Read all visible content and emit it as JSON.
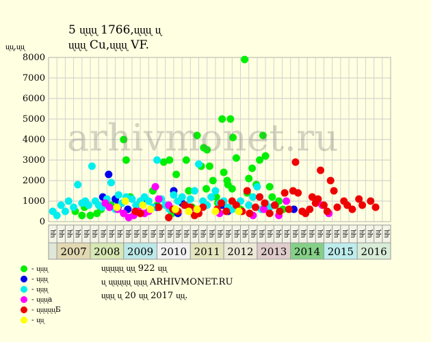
{
  "header": {
    "title_line1": "5 ᶙᶙᶙ 1766,ᶙᶙᶙ ᶙ",
    "title_line2": "ᶙᶙᶙ Cu,ᶙᶙᶙ VF.",
    "ylabel": "ᶙᶙ,ᶙᶙ"
  },
  "watermark": "arhivmonet.ru",
  "notes": {
    "line1": "ᶙᶙᶙᶙᶙ ᶙᶙ 922 ᶙᶙ",
    "line2": "ᶙ ᶙᶙᶙᶙᶙ ᶙᶙᶙ ARHIVMONET.RU",
    "line3": "ᶙᶙᶙ ᶙ 20 ᶙᶙ 2017 ᶙᶙ."
  },
  "legend": [
    {
      "label": "- ᶙᶙᶙ",
      "color": "#00ee00"
    },
    {
      "label": "- ᶙᶙᶙ",
      "color": "#0000ee"
    },
    {
      "label": "- ᶙᶙᶙ",
      "color": "#00eeee"
    },
    {
      "label": "- ᶙᶙᶙa",
      "color": "#ff00ff"
    },
    {
      "label": "- ᶙᶙᶙᶙᶙБ",
      "color": "#ee0000"
    },
    {
      "label": "- ᶙᶙ",
      "color": "#ffff00"
    }
  ],
  "chart_data": {
    "type": "scatter",
    "ylim": [
      0,
      8000
    ],
    "yticks": [
      0,
      1000,
      2000,
      3000,
      4000,
      5000,
      6000,
      7000,
      8000
    ],
    "grid": true,
    "quarter_labels": [
      "ᶙᶙ",
      "ᶙᶙ",
      "ᶙᶙ",
      "ᶙᶙ",
      "ᶙᶙ",
      "ᶙᶙ",
      "ᶙᶙ",
      "ᶙᶙ",
      "ᶙᶙ",
      "ᶙᶙ",
      "ᶙᶙ",
      "ᶙᶙ",
      "ᶙᶙ",
      "ᶙᶙ",
      "ᶙᶙ",
      "ᶙᶙ",
      "ᶙᶙ",
      "ᶙᶙ",
      "ᶙᶙ",
      "ᶙᶙ",
      "ᶙᶙ",
      "ᶙᶙ",
      "ᶙᶙ",
      "ᶙᶙ",
      "ᶙᶙ",
      "ᶙᶙ",
      "ᶙᶙ",
      "ᶙᶙ",
      "ᶙᶙ",
      "ᶙᶙ",
      "ᶙᶙ",
      "ᶙᶙ",
      "ᶙᶙ",
      "ᶙᶙ",
      "ᶙᶙ",
      "ᶙᶙ",
      "ᶙᶙ",
      "ᶙᶙ",
      "ᶙᶙ",
      "ᶙᶙ",
      "ᶙᶙ"
    ],
    "years": [
      {
        "label": "2007",
        "color": "#e2d8b2"
      },
      {
        "label": "2008",
        "color": "#d7e8b4"
      },
      {
        "label": "2009",
        "color": "#bde8e8"
      },
      {
        "label": "2010",
        "color": "#f2f2f2"
      },
      {
        "label": "2011",
        "color": "#e4e4bd"
      },
      {
        "label": "2012",
        "color": "#ede9d7"
      },
      {
        "label": "2013",
        "color": "#e0cccc"
      },
      {
        "label": "2014",
        "color": "#85d088"
      },
      {
        "label": "2015",
        "color": "#bdecec"
      },
      {
        "label": "2016",
        "color": "#d8ecd8"
      }
    ],
    "series": [
      {
        "color": "#00ee00",
        "points": [
          [
            3.2,
            500
          ],
          [
            4.0,
            300
          ],
          [
            4.3,
            700
          ],
          [
            5.0,
            300
          ],
          [
            5.8,
            400
          ],
          [
            6.3,
            600
          ],
          [
            7.5,
            800
          ],
          [
            9.0,
            4000
          ],
          [
            9.3,
            3000
          ],
          [
            9.8,
            1200
          ],
          [
            11.2,
            900
          ],
          [
            12.5,
            1500
          ],
          [
            13.0,
            800
          ],
          [
            13.8,
            2900
          ],
          [
            14.5,
            3000
          ],
          [
            14.8,
            400
          ],
          [
            15.3,
            2300
          ],
          [
            15.8,
            1000
          ],
          [
            16.5,
            3000
          ],
          [
            16.8,
            1500
          ],
          [
            17.2,
            700
          ],
          [
            17.8,
            4200
          ],
          [
            18.3,
            2700
          ],
          [
            18.6,
            3600
          ],
          [
            19.0,
            3500
          ],
          [
            19.3,
            2700
          ],
          [
            19.7,
            2000
          ],
          [
            20.3,
            900
          ],
          [
            20.8,
            5000
          ],
          [
            21.0,
            2400
          ],
          [
            21.5,
            1800
          ],
          [
            21.8,
            5000
          ],
          [
            22.1,
            4100
          ],
          [
            22.5,
            3100
          ],
          [
            23.0,
            600
          ],
          [
            23.5,
            7900
          ],
          [
            24.0,
            2100
          ],
          [
            24.4,
            2600
          ],
          [
            24.9,
            1800
          ],
          [
            25.3,
            3000
          ],
          [
            25.7,
            4200
          ],
          [
            26.0,
            3200
          ],
          [
            26.5,
            1700
          ],
          [
            26.8,
            1200
          ],
          [
            27.2,
            800
          ],
          [
            27.6,
            1000
          ],
          [
            28.1,
            600
          ],
          [
            22.0,
            1600
          ],
          [
            20.1,
            1200
          ],
          [
            18.9,
            1600
          ],
          [
            21.4,
            2000
          ],
          [
            23.8,
            1400
          ]
        ]
      },
      {
        "color": "#0000ee",
        "points": [
          [
            6.5,
            1200
          ],
          [
            7.2,
            2300
          ],
          [
            8.0,
            1100
          ],
          [
            8.4,
            800
          ],
          [
            9.5,
            600
          ],
          [
            11.5,
            1000
          ],
          [
            13.0,
            700
          ],
          [
            15.0,
            1500
          ],
          [
            15.5,
            400
          ],
          [
            16.0,
            900
          ],
          [
            20.8,
            800
          ],
          [
            21.5,
            500
          ],
          [
            29.4,
            600
          ]
        ]
      },
      {
        "color": "#00eeee",
        "points": [
          [
            0.5,
            500
          ],
          [
            1.0,
            300
          ],
          [
            1.5,
            800
          ],
          [
            2.0,
            500
          ],
          [
            2.4,
            1000
          ],
          [
            3.0,
            700
          ],
          [
            3.5,
            1800
          ],
          [
            4.0,
            900
          ],
          [
            4.4,
            1000
          ],
          [
            4.8,
            800
          ],
          [
            5.2,
            2700
          ],
          [
            5.6,
            1000
          ],
          [
            6.0,
            800
          ],
          [
            6.4,
            700
          ],
          [
            7.0,
            1100
          ],
          [
            7.5,
            1900
          ],
          [
            8.0,
            600
          ],
          [
            8.4,
            1300
          ],
          [
            8.8,
            900
          ],
          [
            9.3,
            1200
          ],
          [
            10.0,
            1100
          ],
          [
            10.5,
            800
          ],
          [
            11.0,
            1000
          ],
          [
            11.5,
            1200
          ],
          [
            12.0,
            1000
          ],
          [
            12.5,
            700
          ],
          [
            13.0,
            3000
          ],
          [
            13.5,
            1100
          ],
          [
            14.0,
            800
          ],
          [
            14.5,
            600
          ],
          [
            15.0,
            1300
          ],
          [
            15.5,
            1000
          ],
          [
            16.0,
            1200
          ],
          [
            16.5,
            800
          ],
          [
            17.0,
            1100
          ],
          [
            17.5,
            1500
          ],
          [
            18.0,
            2800
          ],
          [
            18.5,
            1000
          ],
          [
            19.0,
            800
          ],
          [
            19.5,
            1200
          ],
          [
            20.0,
            1500
          ],
          [
            20.5,
            900
          ],
          [
            21.0,
            1000
          ],
          [
            21.5,
            700
          ],
          [
            22.0,
            600
          ],
          [
            23.0,
            1000
          ],
          [
            24.0,
            800
          ],
          [
            24.5,
            1200
          ],
          [
            25.0,
            1700
          ],
          [
            25.5,
            600
          ],
          [
            26.0,
            900
          ],
          [
            26.5,
            700
          ]
        ]
      },
      {
        "color": "#ff00ff",
        "points": [
          [
            6.8,
            900
          ],
          [
            7.3,
            700
          ],
          [
            8.3,
            600
          ],
          [
            9.0,
            400
          ],
          [
            9.6,
            200
          ],
          [
            10.2,
            300
          ],
          [
            10.8,
            500
          ],
          [
            11.5,
            400
          ],
          [
            12.0,
            500
          ],
          [
            12.8,
            1700
          ],
          [
            13.2,
            1100
          ],
          [
            14.4,
            800
          ],
          [
            17.0,
            600
          ],
          [
            20.5,
            400
          ],
          [
            24.5,
            300
          ],
          [
            25.8,
            600
          ],
          [
            27.6,
            300
          ],
          [
            28.5,
            1000
          ],
          [
            32.8,
            800
          ],
          [
            33.6,
            400
          ]
        ]
      },
      {
        "color": "#ee0000",
        "points": [
          [
            10.4,
            500
          ],
          [
            11.0,
            400
          ],
          [
            13.2,
            700
          ],
          [
            14.4,
            200
          ],
          [
            14.9,
            600
          ],
          [
            15.5,
            500
          ],
          [
            16.3,
            800
          ],
          [
            17.0,
            700
          ],
          [
            17.5,
            300
          ],
          [
            18.0,
            400
          ],
          [
            18.5,
            700
          ],
          [
            20.2,
            600
          ],
          [
            20.7,
            900
          ],
          [
            21.3,
            500
          ],
          [
            22.0,
            1000
          ],
          [
            22.5,
            800
          ],
          [
            23.2,
            500
          ],
          [
            23.8,
            1500
          ],
          [
            24.1,
            400
          ],
          [
            24.8,
            700
          ],
          [
            25.3,
            1200
          ],
          [
            25.9,
            900
          ],
          [
            26.5,
            400
          ],
          [
            27.1,
            800
          ],
          [
            27.7,
            500
          ],
          [
            28.3,
            1400
          ],
          [
            28.8,
            600
          ],
          [
            29.3,
            1500
          ],
          [
            29.6,
            2900
          ],
          [
            29.9,
            1400
          ],
          [
            30.4,
            500
          ],
          [
            30.8,
            400
          ],
          [
            31.3,
            600
          ],
          [
            31.6,
            1200
          ],
          [
            32.0,
            900
          ],
          [
            32.3,
            1100
          ],
          [
            32.6,
            2500
          ],
          [
            33.0,
            800
          ],
          [
            33.4,
            500
          ],
          [
            33.8,
            2000
          ],
          [
            34.2,
            1500
          ],
          [
            34.6,
            700
          ],
          [
            35.4,
            1000
          ],
          [
            35.8,
            800
          ],
          [
            36.4,
            600
          ],
          [
            37.2,
            1100
          ],
          [
            37.6,
            800
          ],
          [
            38.6,
            1000
          ],
          [
            39.2,
            700
          ]
        ]
      },
      {
        "color": "#ffff00",
        "points": [
          [
            8.2,
            700
          ],
          [
            9.2,
            1000
          ],
          [
            11.3,
            800
          ],
          [
            12.2,
            600
          ],
          [
            15.2,
            600
          ],
          [
            16.8,
            500
          ],
          [
            17.8,
            600
          ],
          [
            20.0,
            500
          ],
          [
            22.8,
            500
          ]
        ]
      }
    ]
  }
}
